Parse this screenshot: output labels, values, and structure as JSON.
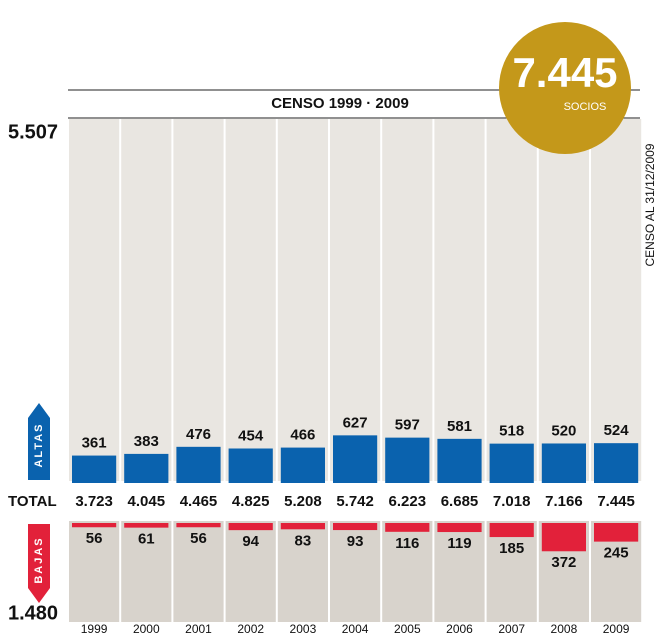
{
  "chart_data": {
    "type": "bar",
    "title": "CENSO 1999 · 2009",
    "note": "CENSO AL 31/12/2009",
    "badge": {
      "value": 7445,
      "label": "7.445",
      "unit": "SOCIOS",
      "color": "#c4981a"
    },
    "categories": [
      "1999",
      "2000",
      "2001",
      "2002",
      "2003",
      "2004",
      "2005",
      "2006",
      "2007",
      "2008",
      "2009"
    ],
    "series": [
      {
        "name": "ALTAS",
        "color": "#0a62ae",
        "values": [
          361,
          383,
          476,
          454,
          466,
          627,
          597,
          581,
          518,
          520,
          524
        ],
        "sum": {
          "value": 5507,
          "label": "5.507"
        }
      },
      {
        "name": "BAJAS",
        "color": "#e2213a",
        "values": [
          56,
          61,
          56,
          94,
          83,
          93,
          116,
          119,
          185,
          372,
          245
        ],
        "sum": {
          "value": 1480,
          "label": "1.480"
        }
      }
    ],
    "totals": {
      "name": "TOTAL",
      "values": [
        3723,
        4045,
        4465,
        4825,
        5208,
        5742,
        6223,
        6685,
        7018,
        7166,
        7445
      ],
      "value_labels": [
        "3.723",
        "4.045",
        "4.465",
        "4.825",
        "5.208",
        "5.742",
        "6.223",
        "6.685",
        "7.018",
        "7.166",
        "7.445"
      ]
    }
  }
}
